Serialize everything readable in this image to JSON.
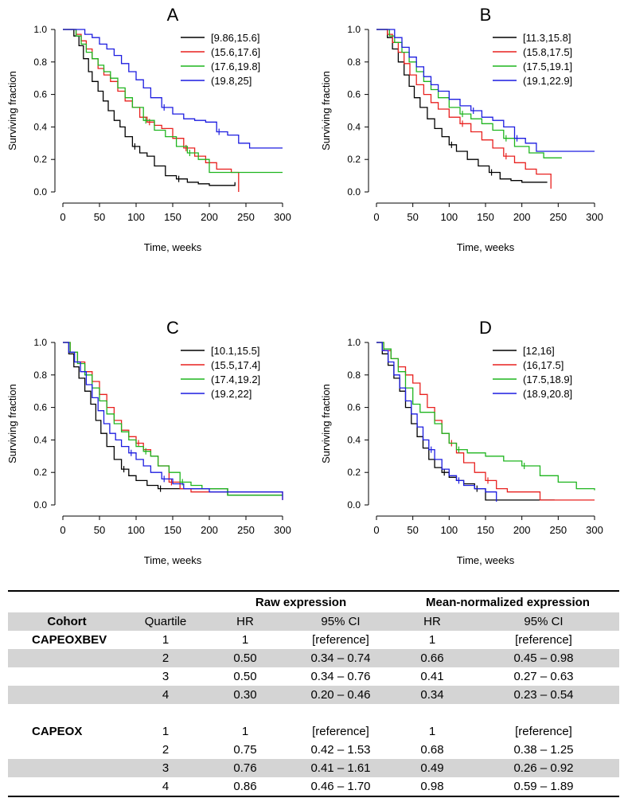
{
  "chart_data": [
    {
      "type": "line",
      "panel": "A",
      "title": "A",
      "xlabel": "Time, weeks",
      "ylabel": "Surviving fraction",
      "xlim": [
        0,
        300
      ],
      "ylim": [
        0,
        1
      ],
      "xticks": [
        "0",
        "50",
        "100",
        "150",
        "200",
        "250",
        "300"
      ],
      "yticks": [
        "0.0",
        "0.2",
        "0.4",
        "0.6",
        "0.8",
        "1.0"
      ],
      "legend_position": "top-right",
      "series": [
        {
          "name": "[9.86,15.6]",
          "color": "#000000",
          "x": [
            0,
            15,
            22,
            28,
            35,
            40,
            48,
            55,
            62,
            70,
            78,
            85,
            95,
            105,
            115,
            125,
            140,
            155,
            170,
            185,
            200,
            215,
            235
          ],
          "y": [
            1.0,
            0.96,
            0.9,
            0.82,
            0.74,
            0.68,
            0.62,
            0.56,
            0.5,
            0.44,
            0.4,
            0.34,
            0.28,
            0.24,
            0.22,
            0.16,
            0.1,
            0.08,
            0.06,
            0.05,
            0.04,
            0.04,
            0.06
          ]
        },
        {
          "name": "(15.6,17.6]",
          "color": "#e8211f",
          "x": [
            0,
            18,
            25,
            32,
            40,
            48,
            56,
            65,
            75,
            85,
            95,
            105,
            115,
            125,
            135,
            150,
            165,
            180,
            195,
            210,
            230,
            240
          ],
          "y": [
            1.0,
            0.97,
            0.93,
            0.88,
            0.82,
            0.76,
            0.72,
            0.68,
            0.62,
            0.56,
            0.52,
            0.46,
            0.43,
            0.41,
            0.39,
            0.33,
            0.27,
            0.22,
            0.18,
            0.14,
            0.12,
            0.0
          ]
        },
        {
          "name": "(17.6,19.8]",
          "color": "#1fb51f",
          "x": [
            0,
            18,
            25,
            32,
            40,
            48,
            56,
            65,
            75,
            85,
            95,
            110,
            125,
            140,
            155,
            170,
            185,
            200,
            215,
            240,
            300
          ],
          "y": [
            1.0,
            0.96,
            0.91,
            0.86,
            0.82,
            0.78,
            0.74,
            0.7,
            0.64,
            0.58,
            0.52,
            0.44,
            0.38,
            0.34,
            0.28,
            0.24,
            0.2,
            0.12,
            0.12,
            0.12,
            0.12
          ]
        },
        {
          "name": "(19.8,25]",
          "color": "#1c1ce0",
          "x": [
            0,
            20,
            30,
            40,
            50,
            60,
            70,
            80,
            90,
            100,
            110,
            120,
            135,
            150,
            165,
            180,
            195,
            210,
            225,
            240,
            255,
            270,
            300
          ],
          "y": [
            1.0,
            1.0,
            0.97,
            0.95,
            0.91,
            0.88,
            0.84,
            0.79,
            0.74,
            0.69,
            0.64,
            0.58,
            0.52,
            0.48,
            0.45,
            0.44,
            0.43,
            0.37,
            0.35,
            0.3,
            0.27,
            0.27,
            0.27
          ]
        }
      ]
    },
    {
      "type": "line",
      "panel": "B",
      "title": "B",
      "xlabel": "Time, weeks",
      "ylabel": "Surviving fraction",
      "xlim": [
        0,
        300
      ],
      "ylim": [
        0,
        1
      ],
      "xticks": [
        "0",
        "50",
        "100",
        "150",
        "200",
        "250",
        "300"
      ],
      "yticks": [
        "0.0",
        "0.2",
        "0.4",
        "0.6",
        "0.8",
        "1.0"
      ],
      "legend_position": "top-right",
      "series": [
        {
          "name": "[11.3,15.8]",
          "color": "#000000",
          "x": [
            0,
            15,
            22,
            30,
            38,
            45,
            52,
            60,
            70,
            80,
            90,
            100,
            110,
            125,
            140,
            155,
            170,
            185,
            200,
            220,
            235
          ],
          "y": [
            1.0,
            0.95,
            0.88,
            0.8,
            0.72,
            0.65,
            0.58,
            0.52,
            0.45,
            0.39,
            0.34,
            0.29,
            0.25,
            0.2,
            0.16,
            0.12,
            0.08,
            0.07,
            0.06,
            0.06,
            0.06
          ]
        },
        {
          "name": "(15.8,17.5]",
          "color": "#e8211f",
          "x": [
            0,
            15,
            22,
            30,
            38,
            46,
            55,
            65,
            75,
            85,
            100,
            115,
            130,
            145,
            160,
            175,
            190,
            205,
            220,
            240
          ],
          "y": [
            1.0,
            0.97,
            0.92,
            0.86,
            0.79,
            0.72,
            0.66,
            0.6,
            0.55,
            0.51,
            0.46,
            0.42,
            0.37,
            0.32,
            0.27,
            0.22,
            0.18,
            0.14,
            0.11,
            0.02
          ]
        },
        {
          "name": "(17.5,19.1]",
          "color": "#1fb51f",
          "x": [
            0,
            18,
            25,
            35,
            45,
            55,
            65,
            75,
            85,
            100,
            115,
            130,
            145,
            160,
            175,
            190,
            210,
            230,
            255
          ],
          "y": [
            1.0,
            0.96,
            0.92,
            0.86,
            0.8,
            0.74,
            0.68,
            0.63,
            0.58,
            0.52,
            0.48,
            0.45,
            0.42,
            0.38,
            0.33,
            0.28,
            0.24,
            0.21,
            0.21
          ]
        },
        {
          "name": "(19.1,22.9]",
          "color": "#1c1ce0",
          "x": [
            0,
            15,
            25,
            35,
            45,
            55,
            65,
            75,
            85,
            100,
            115,
            130,
            145,
            160,
            175,
            190,
            205,
            220,
            240,
            300
          ],
          "y": [
            1.0,
            1.0,
            0.95,
            0.89,
            0.83,
            0.77,
            0.71,
            0.66,
            0.62,
            0.57,
            0.53,
            0.5,
            0.46,
            0.44,
            0.4,
            0.33,
            0.3,
            0.25,
            0.25,
            0.25
          ]
        }
      ]
    },
    {
      "type": "line",
      "panel": "C",
      "title": "C",
      "xlabel": "Time, weeks",
      "ylabel": "Surviving fraction",
      "xlim": [
        0,
        300
      ],
      "ylim": [
        0,
        1
      ],
      "xticks": [
        "0",
        "50",
        "100",
        "150",
        "200",
        "250",
        "300"
      ],
      "yticks": [
        "0.0",
        "0.2",
        "0.4",
        "0.6",
        "0.8",
        "1.0"
      ],
      "legend_position": "top-right",
      "series": [
        {
          "name": "[10.1,15.5]",
          "color": "#000000",
          "x": [
            0,
            8,
            15,
            22,
            30,
            38,
            45,
            52,
            60,
            70,
            80,
            90,
            100,
            115,
            130,
            160,
            200,
            225,
            300
          ],
          "y": [
            1.0,
            0.93,
            0.85,
            0.78,
            0.7,
            0.62,
            0.52,
            0.44,
            0.36,
            0.28,
            0.22,
            0.18,
            0.15,
            0.12,
            0.1,
            0.1,
            0.1,
            0.06,
            0.06
          ]
        },
        {
          "name": "(15.5,17.4]",
          "color": "#e8211f",
          "x": [
            0,
            10,
            20,
            30,
            40,
            50,
            60,
            70,
            80,
            90,
            100,
            110,
            120,
            130,
            145,
            160,
            175,
            225,
            300
          ],
          "y": [
            1.0,
            0.94,
            0.88,
            0.82,
            0.76,
            0.68,
            0.6,
            0.52,
            0.46,
            0.42,
            0.38,
            0.34,
            0.3,
            0.24,
            0.14,
            0.1,
            0.08,
            0.08,
            0.03
          ]
        },
        {
          "name": "(17.4,19.2]",
          "color": "#1fb51f",
          "x": [
            0,
            10,
            20,
            30,
            40,
            50,
            60,
            70,
            80,
            90,
            100,
            110,
            120,
            130,
            145,
            160,
            175,
            190,
            225,
            300
          ],
          "y": [
            1.0,
            0.94,
            0.87,
            0.8,
            0.72,
            0.64,
            0.56,
            0.5,
            0.45,
            0.4,
            0.36,
            0.33,
            0.3,
            0.24,
            0.2,
            0.14,
            0.12,
            0.1,
            0.06,
            0.06
          ]
        },
        {
          "name": "(19.2,22]",
          "color": "#1c1ce0",
          "x": [
            0,
            8,
            16,
            24,
            32,
            40,
            48,
            56,
            64,
            72,
            80,
            90,
            100,
            110,
            120,
            135,
            150,
            165,
            200,
            250,
            300
          ],
          "y": [
            1.0,
            0.94,
            0.88,
            0.82,
            0.74,
            0.66,
            0.58,
            0.5,
            0.44,
            0.4,
            0.36,
            0.32,
            0.28,
            0.24,
            0.2,
            0.16,
            0.13,
            0.1,
            0.08,
            0.08,
            0.03
          ]
        }
      ]
    },
    {
      "type": "line",
      "panel": "D",
      "title": "D",
      "xlabel": "Time, weeks",
      "ylabel": "Surviving fraction",
      "xlim": [
        0,
        300
      ],
      "ylim": [
        0,
        1
      ],
      "xticks": [
        "0",
        "50",
        "100",
        "150",
        "200",
        "250",
        "300"
      ],
      "yticks": [
        "0.0",
        "0.2",
        "0.4",
        "0.6",
        "0.8",
        "1.0"
      ],
      "legend_position": "top-right",
      "series": [
        {
          "name": "[12,16]",
          "color": "#000000",
          "x": [
            0,
            8,
            16,
            24,
            32,
            40,
            48,
            56,
            64,
            72,
            80,
            90,
            100,
            110,
            120,
            135,
            150,
            160,
            200,
            245
          ],
          "y": [
            1.0,
            0.93,
            0.86,
            0.78,
            0.7,
            0.6,
            0.5,
            0.42,
            0.35,
            0.28,
            0.23,
            0.2,
            0.17,
            0.15,
            0.13,
            0.1,
            0.03,
            0.03,
            0.03,
            0.03
          ]
        },
        {
          "name": "(16,17.5]",
          "color": "#e8211f",
          "x": [
            0,
            10,
            20,
            30,
            40,
            50,
            60,
            70,
            80,
            90,
            100,
            110,
            120,
            135,
            150,
            165,
            180,
            225,
            300
          ],
          "y": [
            1.0,
            0.95,
            0.9,
            0.85,
            0.8,
            0.75,
            0.68,
            0.6,
            0.52,
            0.44,
            0.38,
            0.32,
            0.26,
            0.2,
            0.15,
            0.1,
            0.08,
            0.03,
            0.03
          ]
        },
        {
          "name": "(17.5,18.9]",
          "color": "#1fb51f",
          "x": [
            0,
            10,
            20,
            30,
            40,
            50,
            60,
            70,
            80,
            90,
            100,
            110,
            125,
            150,
            175,
            200,
            225,
            250,
            275,
            300
          ],
          "y": [
            1.0,
            0.96,
            0.9,
            0.82,
            0.72,
            0.62,
            0.57,
            0.57,
            0.5,
            0.44,
            0.38,
            0.34,
            0.32,
            0.3,
            0.27,
            0.24,
            0.18,
            0.14,
            0.1,
            0.09
          ]
        },
        {
          "name": "(18.9,20.8]",
          "color": "#1c1ce0",
          "x": [
            0,
            8,
            16,
            24,
            32,
            40,
            48,
            56,
            64,
            72,
            80,
            90,
            100,
            110,
            120,
            135,
            150,
            165
          ],
          "y": [
            1.0,
            0.95,
            0.88,
            0.8,
            0.72,
            0.64,
            0.56,
            0.48,
            0.4,
            0.34,
            0.28,
            0.22,
            0.18,
            0.15,
            0.12,
            0.1,
            0.08,
            0.02
          ]
        }
      ]
    }
  ],
  "table": {
    "group_headers": {
      "raw": "Raw expression",
      "mean": "Mean-normalized expression"
    },
    "columns": [
      "Cohort",
      "Quartile",
      "HR",
      "95% CI",
      "HR",
      "95% CI"
    ],
    "rows": [
      {
        "cohort": "CAPEOXBEV",
        "quartile": "1",
        "hr_raw": "1",
        "ci_raw": "[reference]",
        "hr_mean": "1",
        "ci_mean": "[reference]",
        "shaded": false
      },
      {
        "cohort": "",
        "quartile": "2",
        "hr_raw": "0.50",
        "ci_raw": "0.34 – 0.74",
        "hr_mean": "0.66",
        "ci_mean": "0.45 – 0.98",
        "shaded": true
      },
      {
        "cohort": "",
        "quartile": "3",
        "hr_raw": "0.50",
        "ci_raw": "0.34 – 0.76",
        "hr_mean": "0.41",
        "ci_mean": "0.27 – 0.63",
        "shaded": false
      },
      {
        "cohort": "",
        "quartile": "4",
        "hr_raw": "0.30",
        "ci_raw": "0.20 – 0.46",
        "hr_mean": "0.34",
        "ci_mean": "0.23 – 0.54",
        "shaded": true
      },
      {
        "cohort": "CAPEOX",
        "quartile": "1",
        "hr_raw": "1",
        "ci_raw": "[reference]",
        "hr_mean": "1",
        "ci_mean": "[reference]",
        "shaded": false
      },
      {
        "cohort": "",
        "quartile": "2",
        "hr_raw": "0.75",
        "ci_raw": "0.42 – 1.53",
        "hr_mean": "0.68",
        "ci_mean": "0.38 – 1.25",
        "shaded": false
      },
      {
        "cohort": "",
        "quartile": "3",
        "hr_raw": "0.76",
        "ci_raw": "0.41 – 1.61",
        "hr_mean": "0.49",
        "ci_mean": "0.26 – 0.92",
        "shaded": true
      },
      {
        "cohort": "",
        "quartile": "4",
        "hr_raw": "0.86",
        "ci_raw": "0.46 – 1.70",
        "hr_mean": "0.98",
        "ci_mean": "0.59 – 1.89",
        "shaded": false
      }
    ]
  }
}
